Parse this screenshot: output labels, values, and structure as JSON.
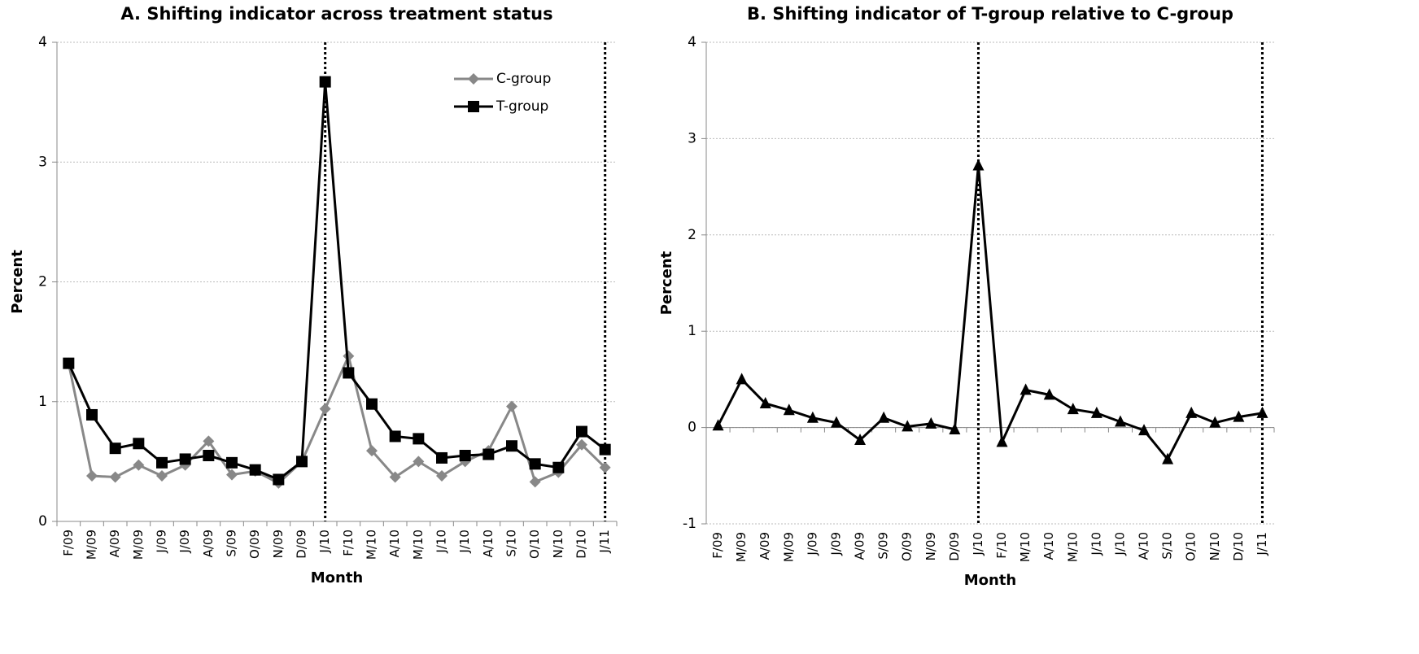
{
  "chart_data": [
    {
      "type": "line",
      "title": "A. Shifting indicator across treatment status",
      "x_label": "Month",
      "y_label": "Percent",
      "categories": [
        "F/09",
        "M/09",
        "A/09",
        "M/09",
        "J/09",
        "J/09",
        "A/09",
        "S/09",
        "O/09",
        "N/09",
        "D/09",
        "J/10",
        "F/10",
        "M/10",
        "A/10",
        "M/10",
        "J/10",
        "J/10",
        "A/10",
        "S/10",
        "O/10",
        "N/10",
        "D/10",
        "J/11"
      ],
      "series": [
        {
          "name": "C-group",
          "color": "#888888",
          "marker": "diamond",
          "values": [
            1.32,
            0.38,
            0.37,
            0.47,
            0.38,
            0.47,
            0.67,
            0.39,
            0.42,
            0.32,
            0.5,
            0.94,
            1.38,
            0.59,
            0.37,
            0.5,
            0.38,
            0.5,
            0.59,
            0.96,
            0.33,
            0.41,
            0.64,
            0.45
          ]
        },
        {
          "name": "T-group",
          "color": "#000000",
          "marker": "square",
          "values": [
            1.32,
            0.89,
            0.61,
            0.65,
            0.49,
            0.52,
            0.55,
            0.49,
            0.43,
            0.35,
            0.5,
            3.67,
            1.24,
            0.98,
            0.71,
            0.69,
            0.53,
            0.55,
            0.56,
            0.63,
            0.48,
            0.45,
            0.75,
            0.6
          ]
        }
      ],
      "ylim": [
        0,
        4
      ],
      "yticks": [
        0,
        1,
        2,
        3,
        4
      ],
      "grid": true,
      "legend": "upper right",
      "vline_indices": [
        11,
        23
      ]
    },
    {
      "type": "line",
      "title": "B. Shifting indicator of T-group relative to C-group",
      "x_label": "Month",
      "y_label": "Percent",
      "categories": [
        "F/09",
        "M/09",
        "A/09",
        "M/09",
        "J/09",
        "J/09",
        "A/09",
        "S/09",
        "O/09",
        "N/09",
        "D/09",
        "J/10",
        "F/10",
        "M/10",
        "A/10",
        "M/10",
        "J/10",
        "J/10",
        "A/10",
        "S/10",
        "O/10",
        "N/10",
        "D/10",
        "J/11"
      ],
      "series": [
        {
          "color": "#000000",
          "marker": "triangle",
          "values": [
            0.02,
            0.5,
            0.25,
            0.18,
            0.1,
            0.05,
            -0.13,
            0.1,
            0.01,
            0.04,
            -0.02,
            2.72,
            -0.15,
            0.39,
            0.34,
            0.19,
            0.15,
            0.06,
            -0.03,
            -0.33,
            0.15,
            0.05,
            0.11,
            0.15
          ]
        }
      ],
      "ylim": [
        -1,
        4
      ],
      "yticks": [
        -1,
        0,
        1,
        2,
        3,
        4
      ],
      "grid": true,
      "vline_indices": [
        11,
        23
      ]
    }
  ]
}
